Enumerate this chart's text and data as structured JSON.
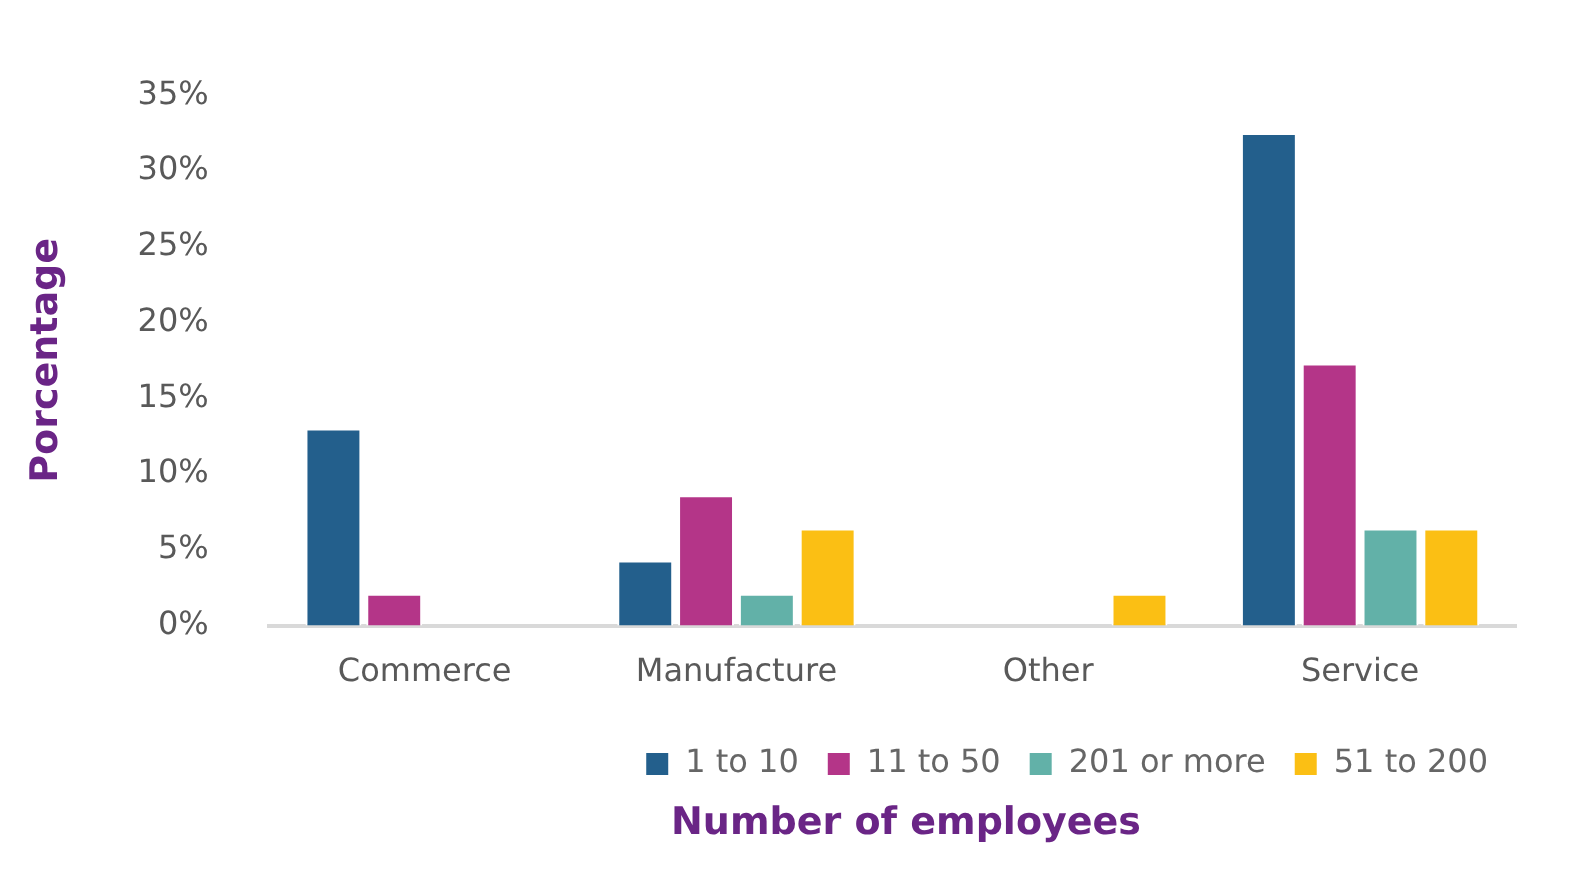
{
  "chart_data": {
    "type": "bar",
    "ylabel": "Porcentage",
    "xlabel": "Number of employees",
    "categories": [
      "Commerce",
      "Manufacture",
      "Other",
      "Service"
    ],
    "series": [
      {
        "name": "1 to 10",
        "color": "#235f8c",
        "values": [
          13,
          4.3,
          null,
          32.5
        ]
      },
      {
        "name": "11 to 50",
        "color": "#b43588",
        "values": [
          2.1,
          8.6,
          null,
          17.3
        ]
      },
      {
        "name": "201 or more",
        "color": "#62b1a8",
        "values": [
          null,
          2.1,
          null,
          6.4
        ]
      },
      {
        "name": "51 to 200",
        "color": "#fbbf14",
        "values": [
          null,
          6.4,
          2.1,
          6.4
        ]
      }
    ],
    "ylim": [
      0,
      35
    ],
    "yticks": [
      {
        "value": 0,
        "label": "0%"
      },
      {
        "value": 5,
        "label": "5%"
      },
      {
        "value": 10,
        "label": "10%"
      },
      {
        "value": 15,
        "label": "15%"
      },
      {
        "value": 20,
        "label": "20%"
      },
      {
        "value": 25,
        "label": "25%"
      },
      {
        "value": 30,
        "label": "30%"
      },
      {
        "value": 35,
        "label": "35%"
      }
    ],
    "grid": false,
    "legend": "bottom"
  }
}
